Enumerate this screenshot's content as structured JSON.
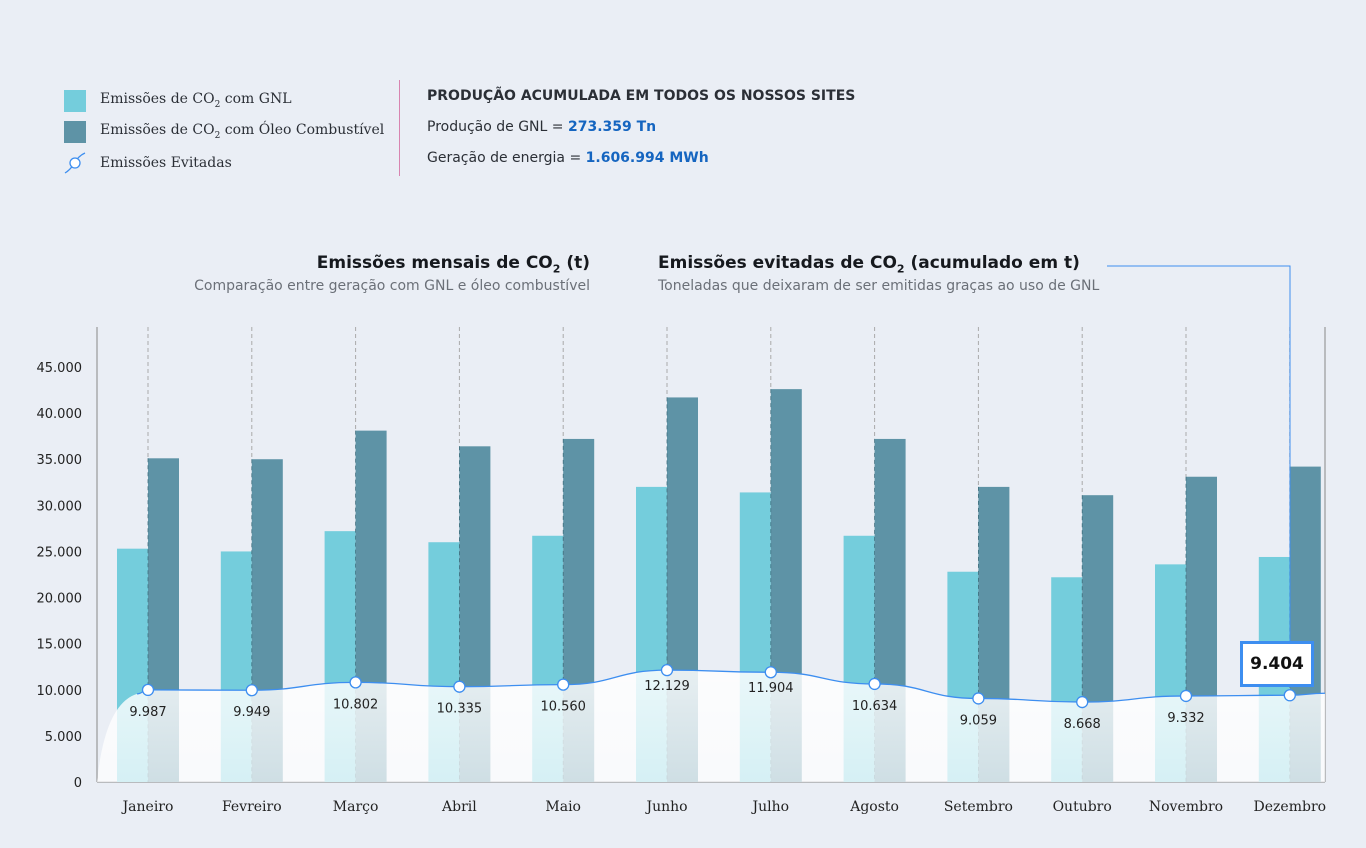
{
  "legend": {
    "items": [
      {
        "label_pre": "Emissões de CO",
        "sub": "2",
        "label_post": " com GNL",
        "color": "#74cddc"
      },
      {
        "label_pre": "Emissões de CO",
        "sub": "2",
        "label_post": " com Óleo Combustível",
        "color": "#5e93a6"
      },
      {
        "label_pre": "Emissões Evitadas",
        "sub": "",
        "label_post": "",
        "color": "#3d8ef0",
        "icon": "line-marker-icon"
      }
    ]
  },
  "production": {
    "title": "PRODUÇÃO ACUMULADA EM TODOS OS NOSSOS SITES",
    "gnl_label": "Produção de GNL = ",
    "gnl_value": "273.359 Tn",
    "energy_label": "Geração de energia = ",
    "energy_value": "1.606.994 MWh"
  },
  "chart_titles": {
    "left_title_pre": "Emissões mensais de CO",
    "left_title_sub": "2",
    "left_title_post": " (t)",
    "left_subtitle": "Comparação entre geração com GNL e óleo combustível",
    "right_title_pre": "Emissões evitadas de CO",
    "right_title_sub": "2",
    "right_title_post": " (acumulado em t)",
    "right_subtitle": "Toneladas que deixaram de ser emitidas graças ao uso de GNL"
  },
  "chart_data": {
    "type": "bar",
    "categories": [
      "Janeiro",
      "Fevreiro",
      "Março",
      "Abril",
      "Maio",
      "Junho",
      "Julho",
      "Agosto",
      "Setembro",
      "Outubro",
      "Novembro",
      "Dezembro"
    ],
    "ylim": [
      0,
      50000
    ],
    "yticks": [
      0,
      5000,
      10000,
      15000,
      20000,
      25000,
      30000,
      35000,
      40000,
      45000
    ],
    "ytick_labels": [
      "0",
      "5.000",
      "10.000",
      "15.000",
      "20.000",
      "25.000",
      "30.000",
      "35.000",
      "40.000",
      "45.000"
    ],
    "grid": false,
    "series": [
      {
        "name": "Emissões de CO2 com GNL",
        "type": "bar",
        "color": "#74cddc",
        "values": [
          25300,
          25000,
          27200,
          26000,
          26700,
          32000,
          31400,
          26700,
          22800,
          22200,
          23600,
          24400
        ]
      },
      {
        "name": "Emissões de CO2 com Óleo Combustível",
        "type": "bar",
        "color": "#5e93a6",
        "values": [
          35100,
          35000,
          38100,
          36400,
          37200,
          41700,
          42600,
          37200,
          32000,
          31100,
          33100,
          34200
        ]
      },
      {
        "name": "Emissões Evitadas",
        "type": "line",
        "color": "#3d8ef0",
        "values": [
          9987,
          9949,
          10802,
          10335,
          10560,
          12129,
          11904,
          10634,
          9059,
          8668,
          9332,
          9404
        ],
        "labels": [
          "9.987",
          "9.949",
          "10.802",
          "10.335",
          "10.560",
          "12.129",
          "11.904",
          "10.634",
          "9.059",
          "8.668",
          "9.332",
          ""
        ]
      }
    ],
    "highlight": {
      "category": "Dezembro",
      "label": "9.404"
    }
  }
}
